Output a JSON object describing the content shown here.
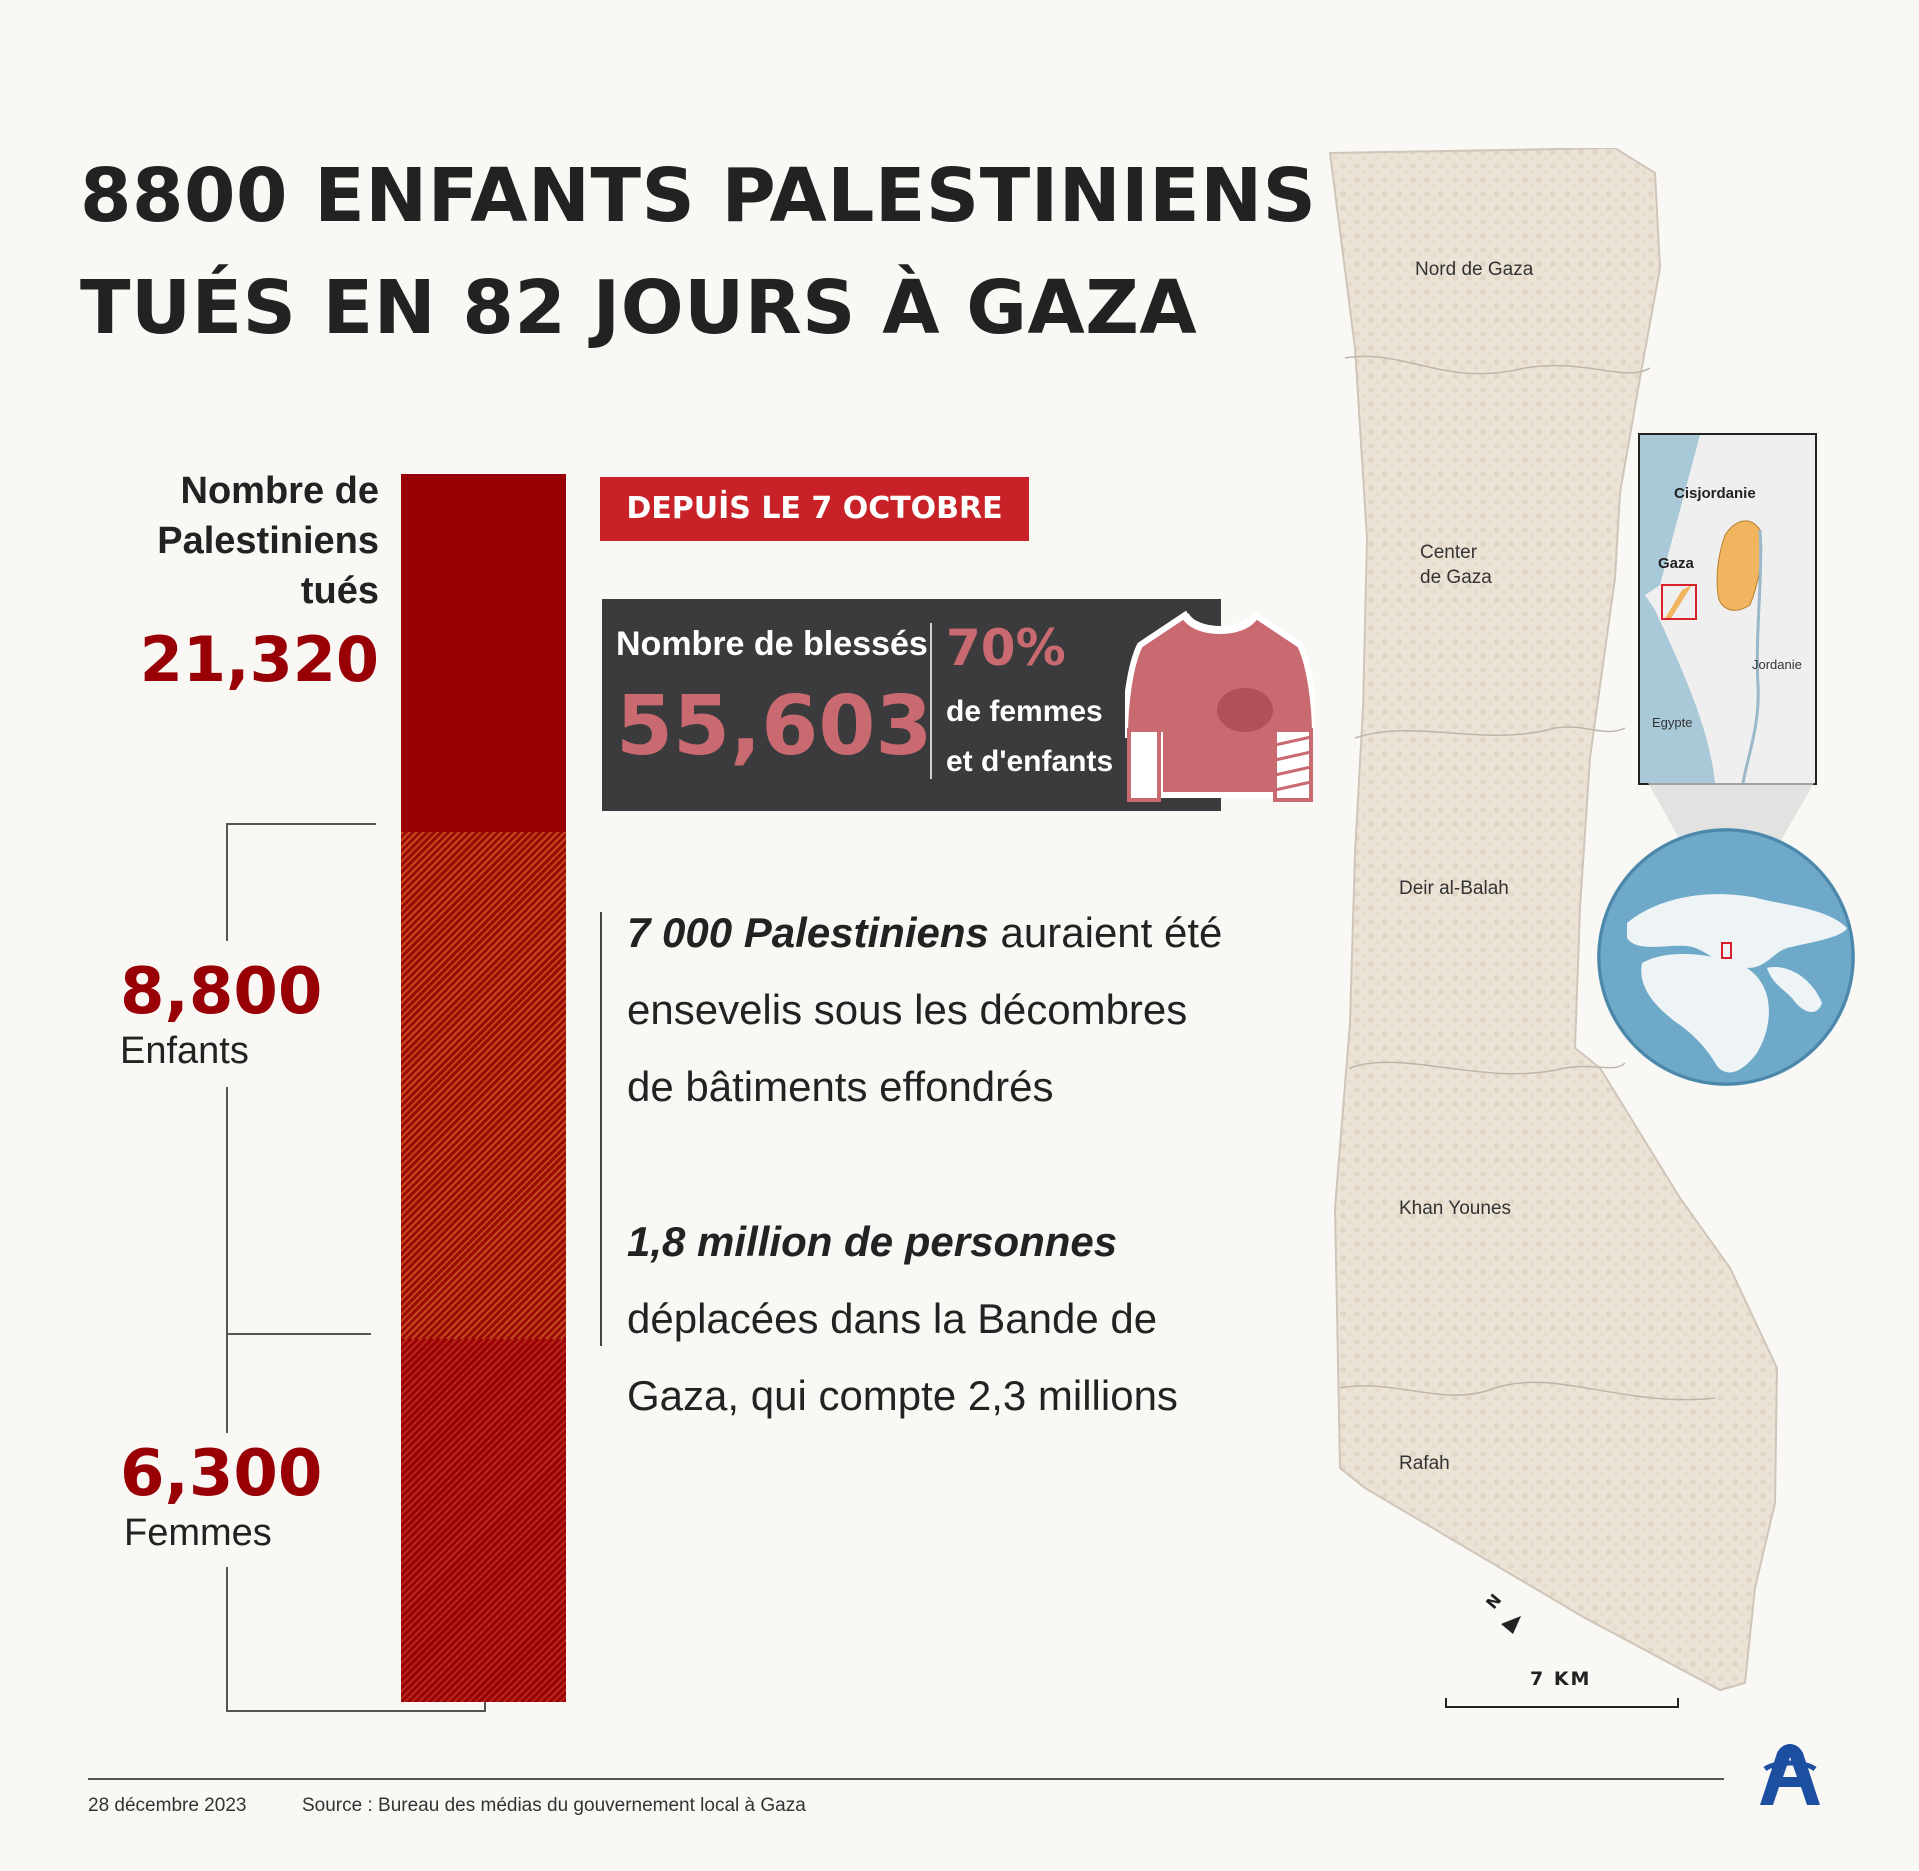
{
  "title": {
    "line1": "8800 ENFANTS PALESTINIENS",
    "line2": "TUÉS EN 82 JOURS À GAZA"
  },
  "killed": {
    "label_line1": "Nombre de",
    "label_line2": "Palestiniens",
    "label_line3": "tués",
    "value": "21,320",
    "total": 21320
  },
  "breakdown": [
    {
      "value": "8,800",
      "label": "Enfants",
      "count": 8800
    },
    {
      "value": "6,300",
      "label": "Femmes",
      "count": 6300
    }
  ],
  "badge": "DEPUİS LE 7 OCTOBRE",
  "wounded": {
    "label": "Nombre de blessés",
    "value": "55,603",
    "percent": "70%",
    "desc_line1": "de femmes",
    "desc_line2": "et d'enfants"
  },
  "facts": [
    {
      "emph": "7 000 Palestiniens",
      "line1_rest": " auraient été",
      "line2": "ensevelis sous les décombres",
      "line3": "de bâtiments effondrés"
    },
    {
      "emph": "1,8 million de personnes",
      "line2": "déplacées dans la Bande de",
      "line3": "Gaza, qui compte 2,3 millions"
    }
  ],
  "map": {
    "regions": [
      "Nord de Gaza",
      "Center",
      "de Gaza",
      "Deir al-Balah",
      "Khan Younes",
      "Rafah"
    ],
    "scale": "7 KM",
    "north": "N"
  },
  "inset": {
    "labels": [
      "Cisjordanie",
      "Gaza",
      "Jordanie",
      "Egypte"
    ]
  },
  "footer": {
    "date": "28 décembre 2023",
    "source": "Source : Bureau des médias du gouvernement local à Gaza"
  },
  "colors": {
    "accent_red": "#980005",
    "badge_red": "#c82127",
    "pink": "#c96a70",
    "dark_box": "#3b3b3d",
    "map_fill": "#ece3d7",
    "inset_highlight": "#f2b55f"
  },
  "icons": [
    "injured-shirt-icon",
    "north-arrow-icon",
    "aa-logo-icon",
    "globe-icon"
  ]
}
